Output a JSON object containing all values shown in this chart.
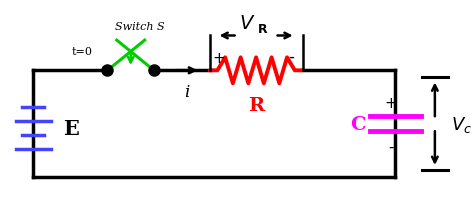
{
  "bg_color": "#ffffff",
  "wire_color": "#000000",
  "resistor_color": "#ff0000",
  "capacitor_color": "#ff00ff",
  "battery_color": "#4444ff",
  "switch_color": "#00cc00",
  "label_E": "E",
  "label_R": "R",
  "label_C": "C",
  "label_i": "i",
  "label_VR": "$V_\\mathbf{R}$",
  "label_Vc": "$V_c$",
  "label_switch": "Switch S",
  "label_t0": "t=0",
  "label_plus": "+",
  "label_minus": "-",
  "figsize": [
    4.74,
    2.03
  ],
  "dpi": 100
}
